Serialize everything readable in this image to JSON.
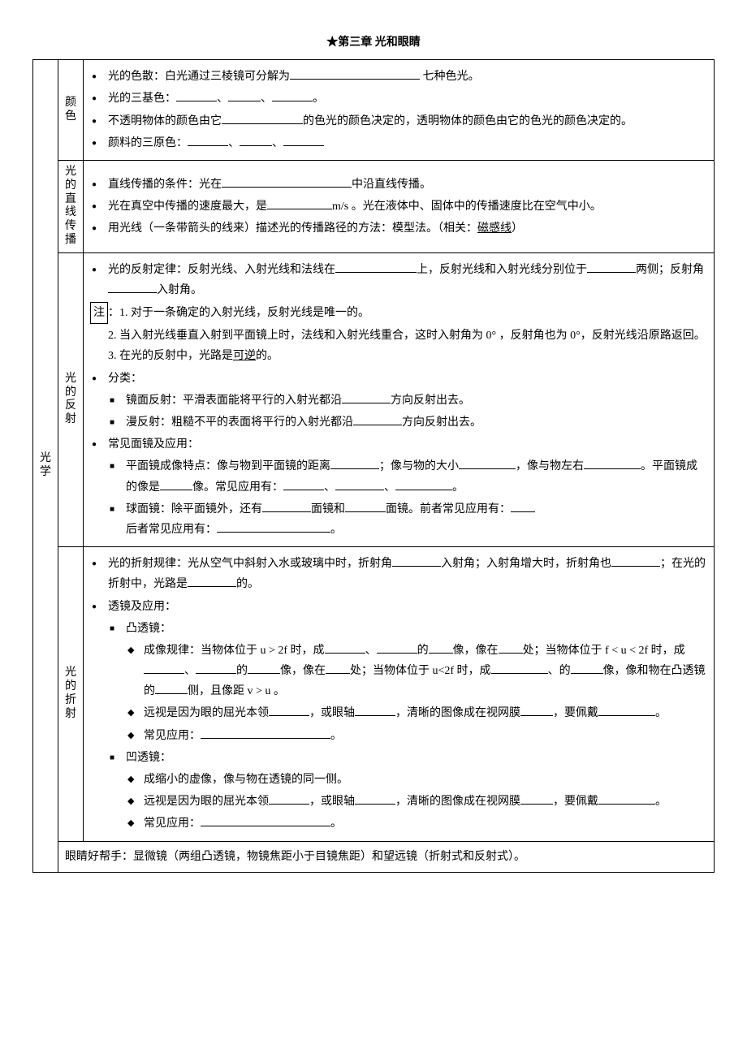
{
  "title": "★第三章 光和眼睛",
  "colhead_main": "光学",
  "sections": {
    "color": {
      "head": "颜色",
      "l1": "光的色散：白光通过三棱镜可分解为",
      "l1b": " 七种色光。",
      "l2": "光的三基色：",
      "l3a": "不透明物体的颜色由它",
      "l3b": "的色光的颜色决定的，透明物体的颜色由它",
      "l3c": "的色光的颜色决定的。",
      "l4": "颜料的三原色："
    },
    "line": {
      "head": "光的直线传播",
      "l1a": "直线传播的条件：光在",
      "l1b": "中沿直线传播。",
      "l2a": "光在真空中传播的速度最大，是",
      "l2b": "m/s 。光在液体中、固体中的传播速度比在空气中小。",
      "l3a": "用光线（一条带箭头的线来）描述光的传播路径的方法：模型法。（相关：",
      "l3b": "磁感线",
      "l3c": "）"
    },
    "reflect": {
      "head": "光的反射",
      "l1a": "光的反射定律：反射光线、入射光线和法线在",
      "l1b": "上，反射光线和入射光线分别位于",
      "l1c": "两侧；反射角",
      "l1d": "入射角。",
      "note_label": "注",
      "n1": "：1. 对于一条确定的入射光线，反射光线是唯一的。",
      "n2": "2. 当入射光线垂直入射到平面镜上时，法线和入射光线重合，这时入射角为 0° ，反射角也为 0°，反射光线沿原路返回。",
      "n3a": "3. 在光的反射中，光路是",
      "n3b": "可逆",
      "n3c": "的。",
      "l2": "分类：",
      "l2_1a": "镜面反射：平滑表面能将平行的入射光都沿",
      "l2_1b": "方向反射出去。",
      "l2_2a": "漫反射：粗糙不平的表面将平行的入射光都沿",
      "l2_2b": "方向反射出去。",
      "l3": "常见面镜及应用：",
      "l3_1a": "平面镜成像特点：像与物到平面镜的距离",
      "l3_1b": "；像与物的大小",
      "l3_1c": "，像与物左右",
      "l3_1d": "。平面镜成的像是",
      "l3_1e": "像。常见应用有：",
      "l3_2a": "球面镜：除平面镜外，还有",
      "l3_2b": "面镜和",
      "l3_2c": "面镜。前者常见应用有：",
      "l3_2d": "后者常见应用有："
    },
    "refract": {
      "head": "光的折射",
      "l1a": "光的折射规律：光从空气中斜射入水或玻璃中时，折射角",
      "l1b": "入射角；入射角增大时，折射角也",
      "l1c": "；在光的折射中，光路是",
      "l1d": "的。",
      "l2": "透镜及应用：",
      "l2_1": "凸透镜：",
      "l2_1_1a": "成像规律：当物体位于 u > 2f 时，成",
      "l2_1_1b": "的",
      "l2_1_1c": "像，像在",
      "l2_1_1d": "处；当物体位于 f < u < 2f 时，成",
      "l2_1_1e": "的",
      "l2_1_1f": "像，像在",
      "l2_1_1g": "处；当物体位于 u<2f 时，成",
      "l2_1_1h": "的",
      "l2_1_1i": "像，像和物在凸透镜的",
      "l2_1_1j": "侧，且像距 v > u 。",
      "l2_1_2a": "远视是因为眼的屈光本领",
      "l2_1_2b": "，或眼轴",
      "l2_1_2c": "，清晰的图像成在视网膜",
      "l2_1_2d": "，要佩戴",
      "l2_1_3": "常见应用：",
      "l2_2": "凹透镜：",
      "l2_2_1": "成缩小的虚像，像与物在透镜的同一侧。",
      "l2_2_2a": "远视是因为眼的屈光本领",
      "l2_2_2b": "，或眼轴",
      "l2_2_2c": "，清晰的图像成在视网膜",
      "l2_2_2d": "，要佩戴",
      "l2_2_3": "常见应用："
    },
    "helper": "眼睛好帮手：显微镜（两组凸透镜，物镜焦距小于目镜焦距）和望远镜（折射式和反射式）。"
  },
  "punct": {
    "dun": "、",
    "period": "。",
    "colon": "："
  }
}
